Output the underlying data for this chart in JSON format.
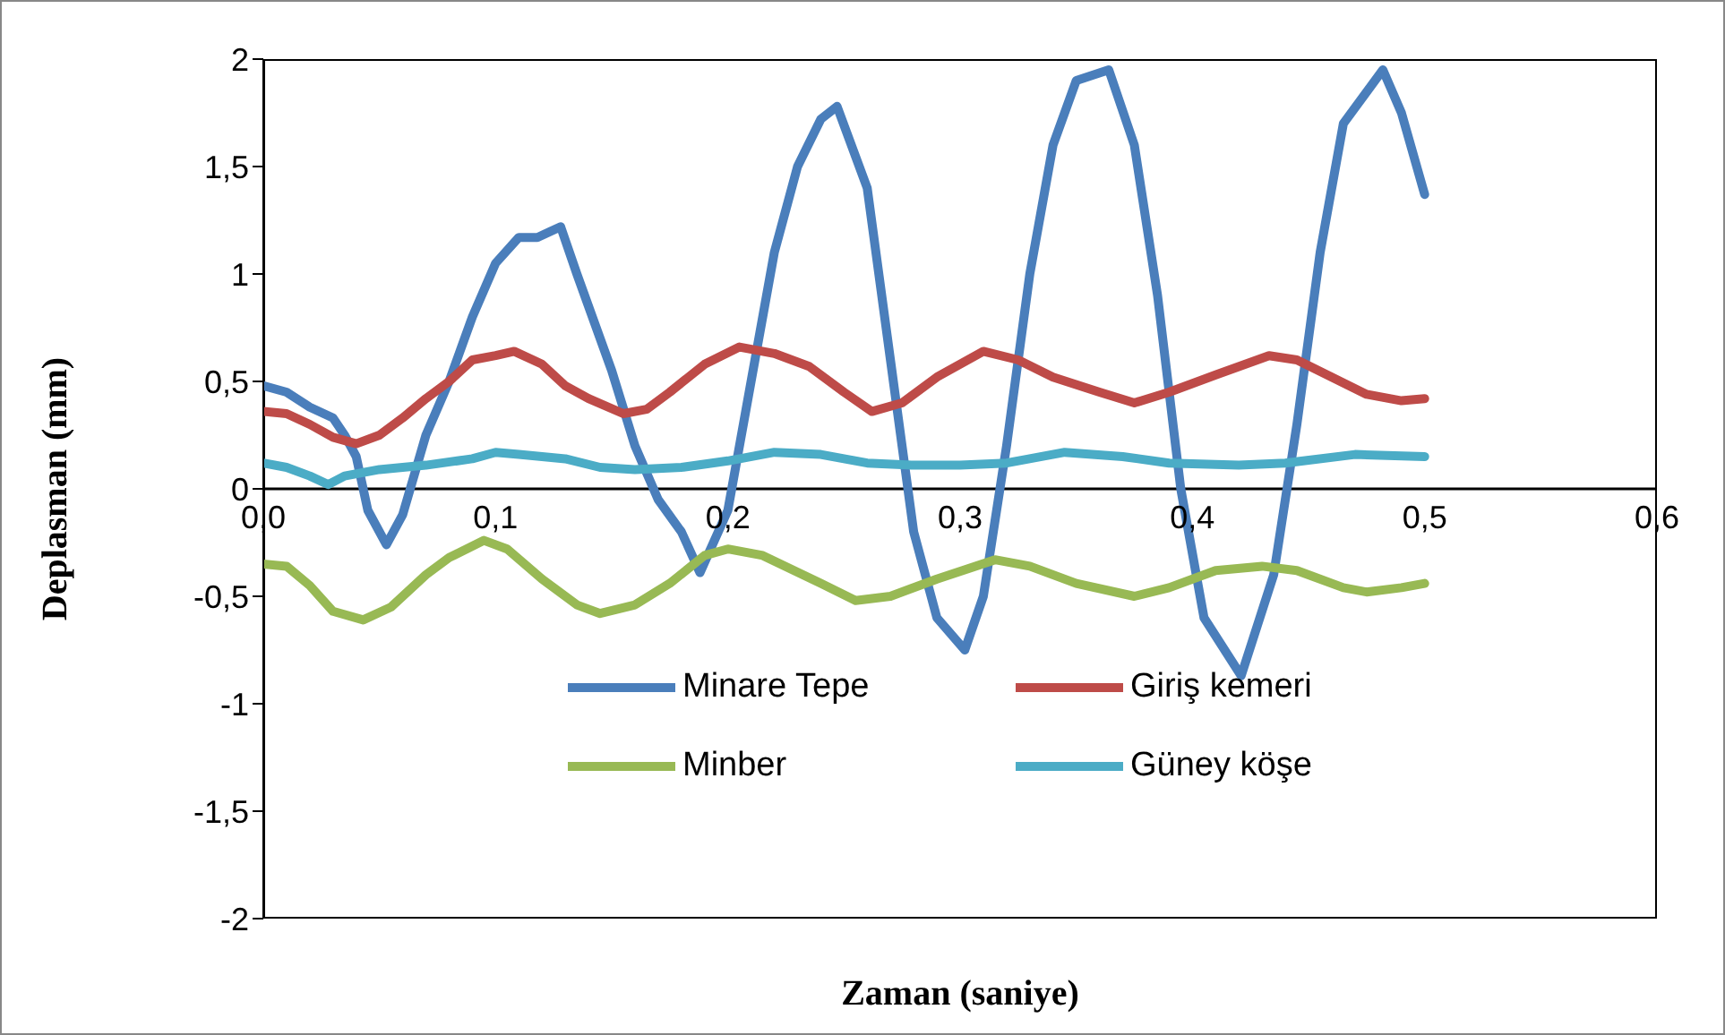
{
  "chart_data": {
    "type": "line",
    "xlabel": "Zaman (saniye)",
    "ylabel": "Deplasman (mm)",
    "xlim": [
      0,
      0.6
    ],
    "xticks": [
      {
        "value": 0,
        "label": "0,0"
      },
      {
        "value": 0.1,
        "label": "0,1"
      },
      {
        "value": 0.2,
        "label": "0,2"
      },
      {
        "value": 0.3,
        "label": "0,3"
      },
      {
        "value": 0.4,
        "label": "0,4"
      },
      {
        "value": 0.5,
        "label": "0,5"
      },
      {
        "value": 0.6,
        "label": "0,6"
      }
    ],
    "ylim": [
      -2,
      2
    ],
    "yticks": [
      -2,
      {
        "value": -1.5,
        "label": "-1,5"
      },
      -1,
      {
        "value": -0.5,
        "label": "-0,5"
      },
      0,
      {
        "value": 0.5,
        "label": "0,5"
      },
      1,
      {
        "value": 1.5,
        "label": "1,5"
      },
      2
    ],
    "grid": false,
    "legend": "bottom",
    "marker": "none",
    "line_style": "solid",
    "series": [
      {
        "name": "Minare Tepe",
        "color": "#4a7ebb",
        "x": [
          0,
          0.01,
          0.02,
          0.03,
          0.035,
          0.04,
          0.045,
          0.053,
          0.06,
          0.07,
          0.08,
          0.09,
          0.1,
          0.11,
          0.118,
          0.128,
          0.135,
          0.15,
          0.16,
          0.17,
          0.18,
          0.188,
          0.2,
          0.21,
          0.22,
          0.23,
          0.24,
          0.247,
          0.26,
          0.27,
          0.28,
          0.29,
          0.302,
          0.31,
          0.32,
          0.33,
          0.34,
          0.35,
          0.364,
          0.375,
          0.385,
          0.395,
          0.405,
          0.421,
          0.435,
          0.445,
          0.455,
          0.465,
          0.482,
          0.49,
          0.5
        ],
        "values": [
          0.48,
          0.45,
          0.38,
          0.33,
          0.25,
          0.15,
          -0.1,
          -0.26,
          -0.12,
          0.25,
          0.5,
          0.8,
          1.05,
          1.17,
          1.17,
          1.22,
          1.0,
          0.55,
          0.2,
          -0.05,
          -0.2,
          -0.39,
          -0.1,
          0.5,
          1.1,
          1.5,
          1.72,
          1.78,
          1.4,
          0.6,
          -0.2,
          -0.6,
          -0.75,
          -0.5,
          0.2,
          1.0,
          1.6,
          1.9,
          1.95,
          1.6,
          0.9,
          0.0,
          -0.6,
          -0.87,
          -0.4,
          0.3,
          1.1,
          1.7,
          1.95,
          1.75,
          1.37
        ]
      },
      {
        "name": "Giriş kemeri",
        "color": "#be4b48",
        "x": [
          0,
          0.01,
          0.02,
          0.03,
          0.04,
          0.05,
          0.06,
          0.07,
          0.08,
          0.09,
          0.1,
          0.108,
          0.12,
          0.13,
          0.14,
          0.155,
          0.165,
          0.175,
          0.19,
          0.205,
          0.22,
          0.235,
          0.25,
          0.262,
          0.275,
          0.29,
          0.31,
          0.325,
          0.34,
          0.36,
          0.375,
          0.39,
          0.41,
          0.433,
          0.445,
          0.46,
          0.475,
          0.49,
          0.5
        ],
        "values": [
          0.36,
          0.35,
          0.3,
          0.24,
          0.21,
          0.25,
          0.33,
          0.42,
          0.5,
          0.6,
          0.62,
          0.64,
          0.58,
          0.48,
          0.42,
          0.35,
          0.37,
          0.45,
          0.58,
          0.66,
          0.63,
          0.57,
          0.45,
          0.36,
          0.4,
          0.52,
          0.64,
          0.6,
          0.52,
          0.45,
          0.4,
          0.45,
          0.53,
          0.62,
          0.6,
          0.52,
          0.44,
          0.41,
          0.42
        ]
      },
      {
        "name": "Minber",
        "color": "#98b954",
        "x": [
          0,
          0.01,
          0.02,
          0.03,
          0.043,
          0.055,
          0.07,
          0.08,
          0.095,
          0.105,
          0.12,
          0.135,
          0.145,
          0.16,
          0.175,
          0.19,
          0.2,
          0.215,
          0.24,
          0.255,
          0.27,
          0.29,
          0.315,
          0.33,
          0.35,
          0.375,
          0.39,
          0.41,
          0.43,
          0.445,
          0.465,
          0.475,
          0.49,
          0.5
        ],
        "values": [
          -0.35,
          -0.36,
          -0.45,
          -0.57,
          -0.61,
          -0.55,
          -0.4,
          -0.32,
          -0.24,
          -0.28,
          -0.42,
          -0.54,
          -0.58,
          -0.54,
          -0.44,
          -0.31,
          -0.28,
          -0.31,
          -0.44,
          -0.52,
          -0.5,
          -0.42,
          -0.33,
          -0.36,
          -0.44,
          -0.5,
          -0.46,
          -0.38,
          -0.36,
          -0.38,
          -0.46,
          -0.48,
          -0.46,
          -0.44
        ]
      },
      {
        "name": "Güney köşe",
        "color": "#4bacc6",
        "x": [
          0,
          0.01,
          0.02,
          0.028,
          0.035,
          0.05,
          0.07,
          0.09,
          0.1,
          0.11,
          0.13,
          0.145,
          0.16,
          0.18,
          0.2,
          0.22,
          0.24,
          0.26,
          0.28,
          0.3,
          0.32,
          0.345,
          0.37,
          0.39,
          0.42,
          0.44,
          0.47,
          0.5
        ],
        "values": [
          0.12,
          0.1,
          0.06,
          0.02,
          0.06,
          0.09,
          0.11,
          0.14,
          0.17,
          0.16,
          0.14,
          0.1,
          0.09,
          0.1,
          0.13,
          0.17,
          0.16,
          0.12,
          0.11,
          0.11,
          0.12,
          0.17,
          0.15,
          0.12,
          0.11,
          0.12,
          0.16,
          0.15
        ]
      }
    ]
  }
}
